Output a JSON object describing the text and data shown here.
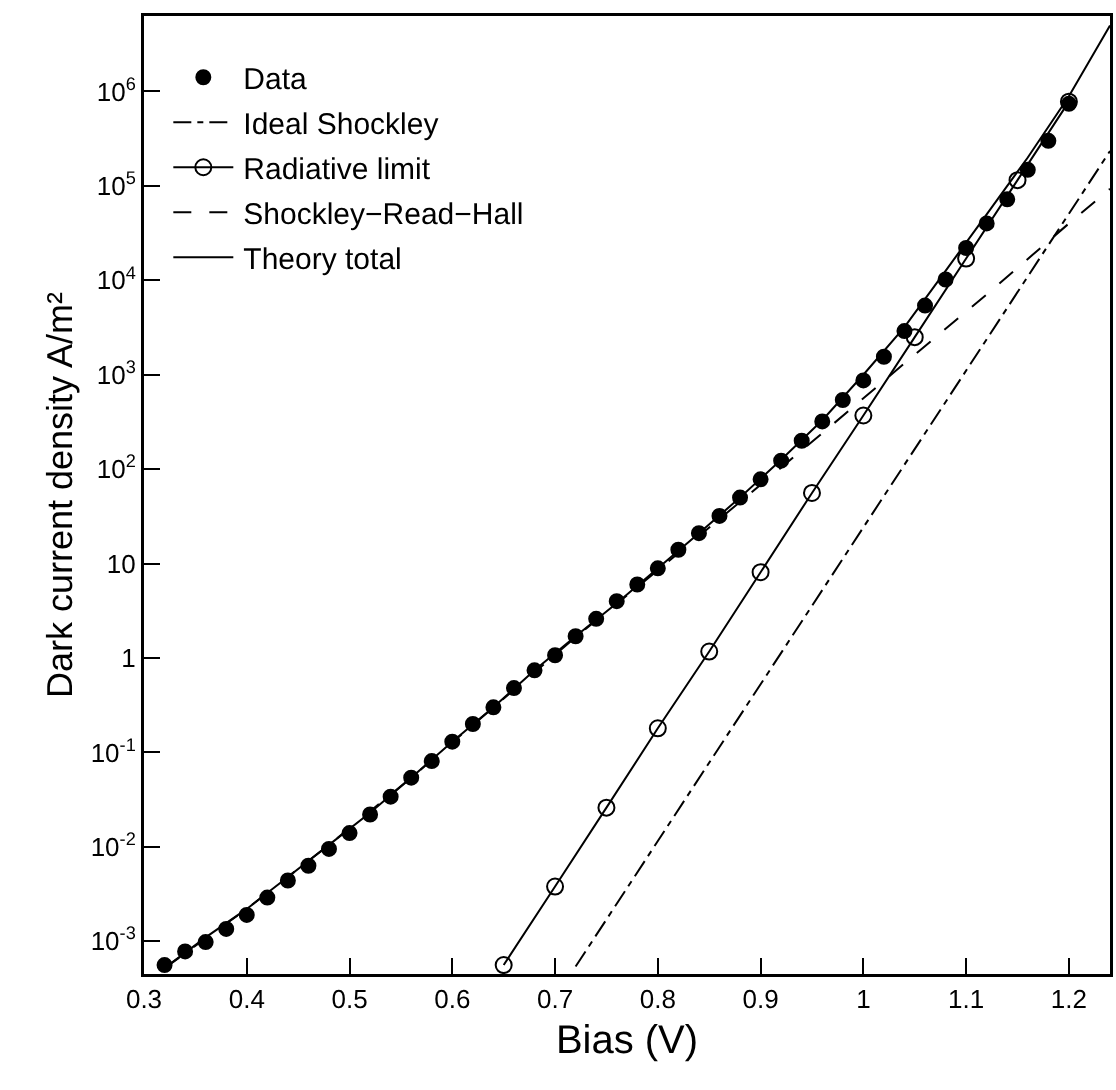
{
  "chart_data": {
    "type": "line",
    "xlabel": "Bias (V)",
    "ylabel": "Dark current density A/m²",
    "log": "y",
    "grid": false,
    "legend": "top left",
    "xlim": [
      0.3,
      1.24
    ],
    "xticks": [
      0.3,
      0.4,
      0.5,
      0.6,
      0.7,
      0.8,
      0.9,
      1,
      1.1,
      1.2
    ],
    "ylim": [
      0.00045,
      6300000
    ],
    "yticks": [
      {
        "value": 0.001,
        "label": "10$^{-3}$"
      },
      {
        "value": 0.01,
        "label": "10$^{-2}$"
      },
      {
        "value": 0.1,
        "label": "10$^{-1}$"
      },
      1,
      10,
      {
        "value": 100,
        "label": "10$^{2}$"
      },
      {
        "value": 1000,
        "label": "10$^{3}$"
      },
      {
        "value": 10000,
        "label": "10$^{4}$"
      },
      {
        "value": 100000,
        "label": "10$^{5}$"
      },
      {
        "value": 1000000,
        "label": "10$^{6}$"
      }
    ],
    "series": [
      {
        "name": "Data",
        "type": "scatter",
        "marker": "circle",
        "color": "#000000",
        "x": [
          0.32,
          0.34,
          0.36,
          0.38,
          0.4,
          0.42,
          0.44,
          0.46,
          0.48,
          0.5,
          0.52,
          0.54,
          0.56,
          0.58,
          0.6,
          0.62,
          0.64,
          0.66,
          0.68,
          0.7,
          0.72,
          0.74,
          0.76,
          0.78,
          0.8,
          0.82,
          0.84,
          0.86,
          0.88,
          0.9,
          0.92,
          0.94,
          0.96,
          0.98,
          1.0,
          1.02,
          1.04,
          1.06,
          1.08,
          1.1,
          1.12,
          1.14,
          1.16,
          1.18,
          1.2
        ],
        "values": [
          0.00056,
          0.00078,
          0.00098,
          0.00135,
          0.0019,
          0.0029,
          0.0044,
          0.0063,
          0.0095,
          0.014,
          0.022,
          0.034,
          0.054,
          0.081,
          0.13,
          0.2,
          0.3,
          0.48,
          0.74,
          1.07,
          1.7,
          2.6,
          4.0,
          6.0,
          8.9,
          14,
          21,
          32,
          50,
          78,
          123,
          200,
          320,
          540,
          870,
          1550,
          2900,
          5400,
          10200,
          22000,
          40000,
          72000,
          148000,
          300000,
          740000
        ]
      },
      {
        "name": "Ideal Shockley",
        "line_style": "dashdot",
        "marker": "none",
        "color": "#000000",
        "x": [
          0.72,
          1.24
        ],
        "values": [
          0.00054,
          234000
        ]
      },
      {
        "name": "Radiative limit",
        "line_style": "solid",
        "marker": "circle-open",
        "color": "#000000",
        "x": [
          0.65,
          0.7,
          0.75,
          0.8,
          0.85,
          0.9,
          0.95,
          1.0,
          1.05,
          1.1,
          1.15,
          1.2
        ],
        "values": [
          0.00056,
          0.0038,
          0.026,
          0.18,
          1.17,
          8.1,
          56,
          370,
          2500,
          17000,
          115000,
          780000
        ]
      },
      {
        "name": "Shockley−Read−Hall",
        "line_style": "dashed",
        "marker": "none",
        "color": "#000000",
        "x": [
          0.32,
          0.4,
          0.48,
          0.56,
          0.64,
          0.72,
          0.8,
          0.88,
          0.96,
          1.04,
          1.12,
          1.2,
          1.24
        ],
        "values": [
          0.00052,
          0.0022,
          0.0105,
          0.054,
          0.3,
          1.66,
          8.5,
          45,
          240,
          1320,
          7100,
          40000,
          93000
        ]
      },
      {
        "name": "Theory total",
        "line_style": "solid",
        "marker": "none",
        "color": "#000000",
        "x": [
          0.32,
          0.36,
          0.4,
          0.44,
          0.48,
          0.52,
          0.56,
          0.6,
          0.64,
          0.68,
          0.72,
          0.76,
          0.8,
          0.84,
          0.88,
          0.92,
          0.96,
          1.0,
          1.04,
          1.08,
          1.12,
          1.16,
          1.2,
          1.24
        ],
        "values": [
          0.00052,
          0.0011,
          0.0022,
          0.0048,
          0.0105,
          0.023,
          0.054,
          0.13,
          0.3,
          0.74,
          1.7,
          3.8,
          8.9,
          21,
          50,
          126,
          330,
          1000,
          3200,
          12600,
          50000,
          200000,
          890000,
          5000000
        ]
      }
    ]
  }
}
